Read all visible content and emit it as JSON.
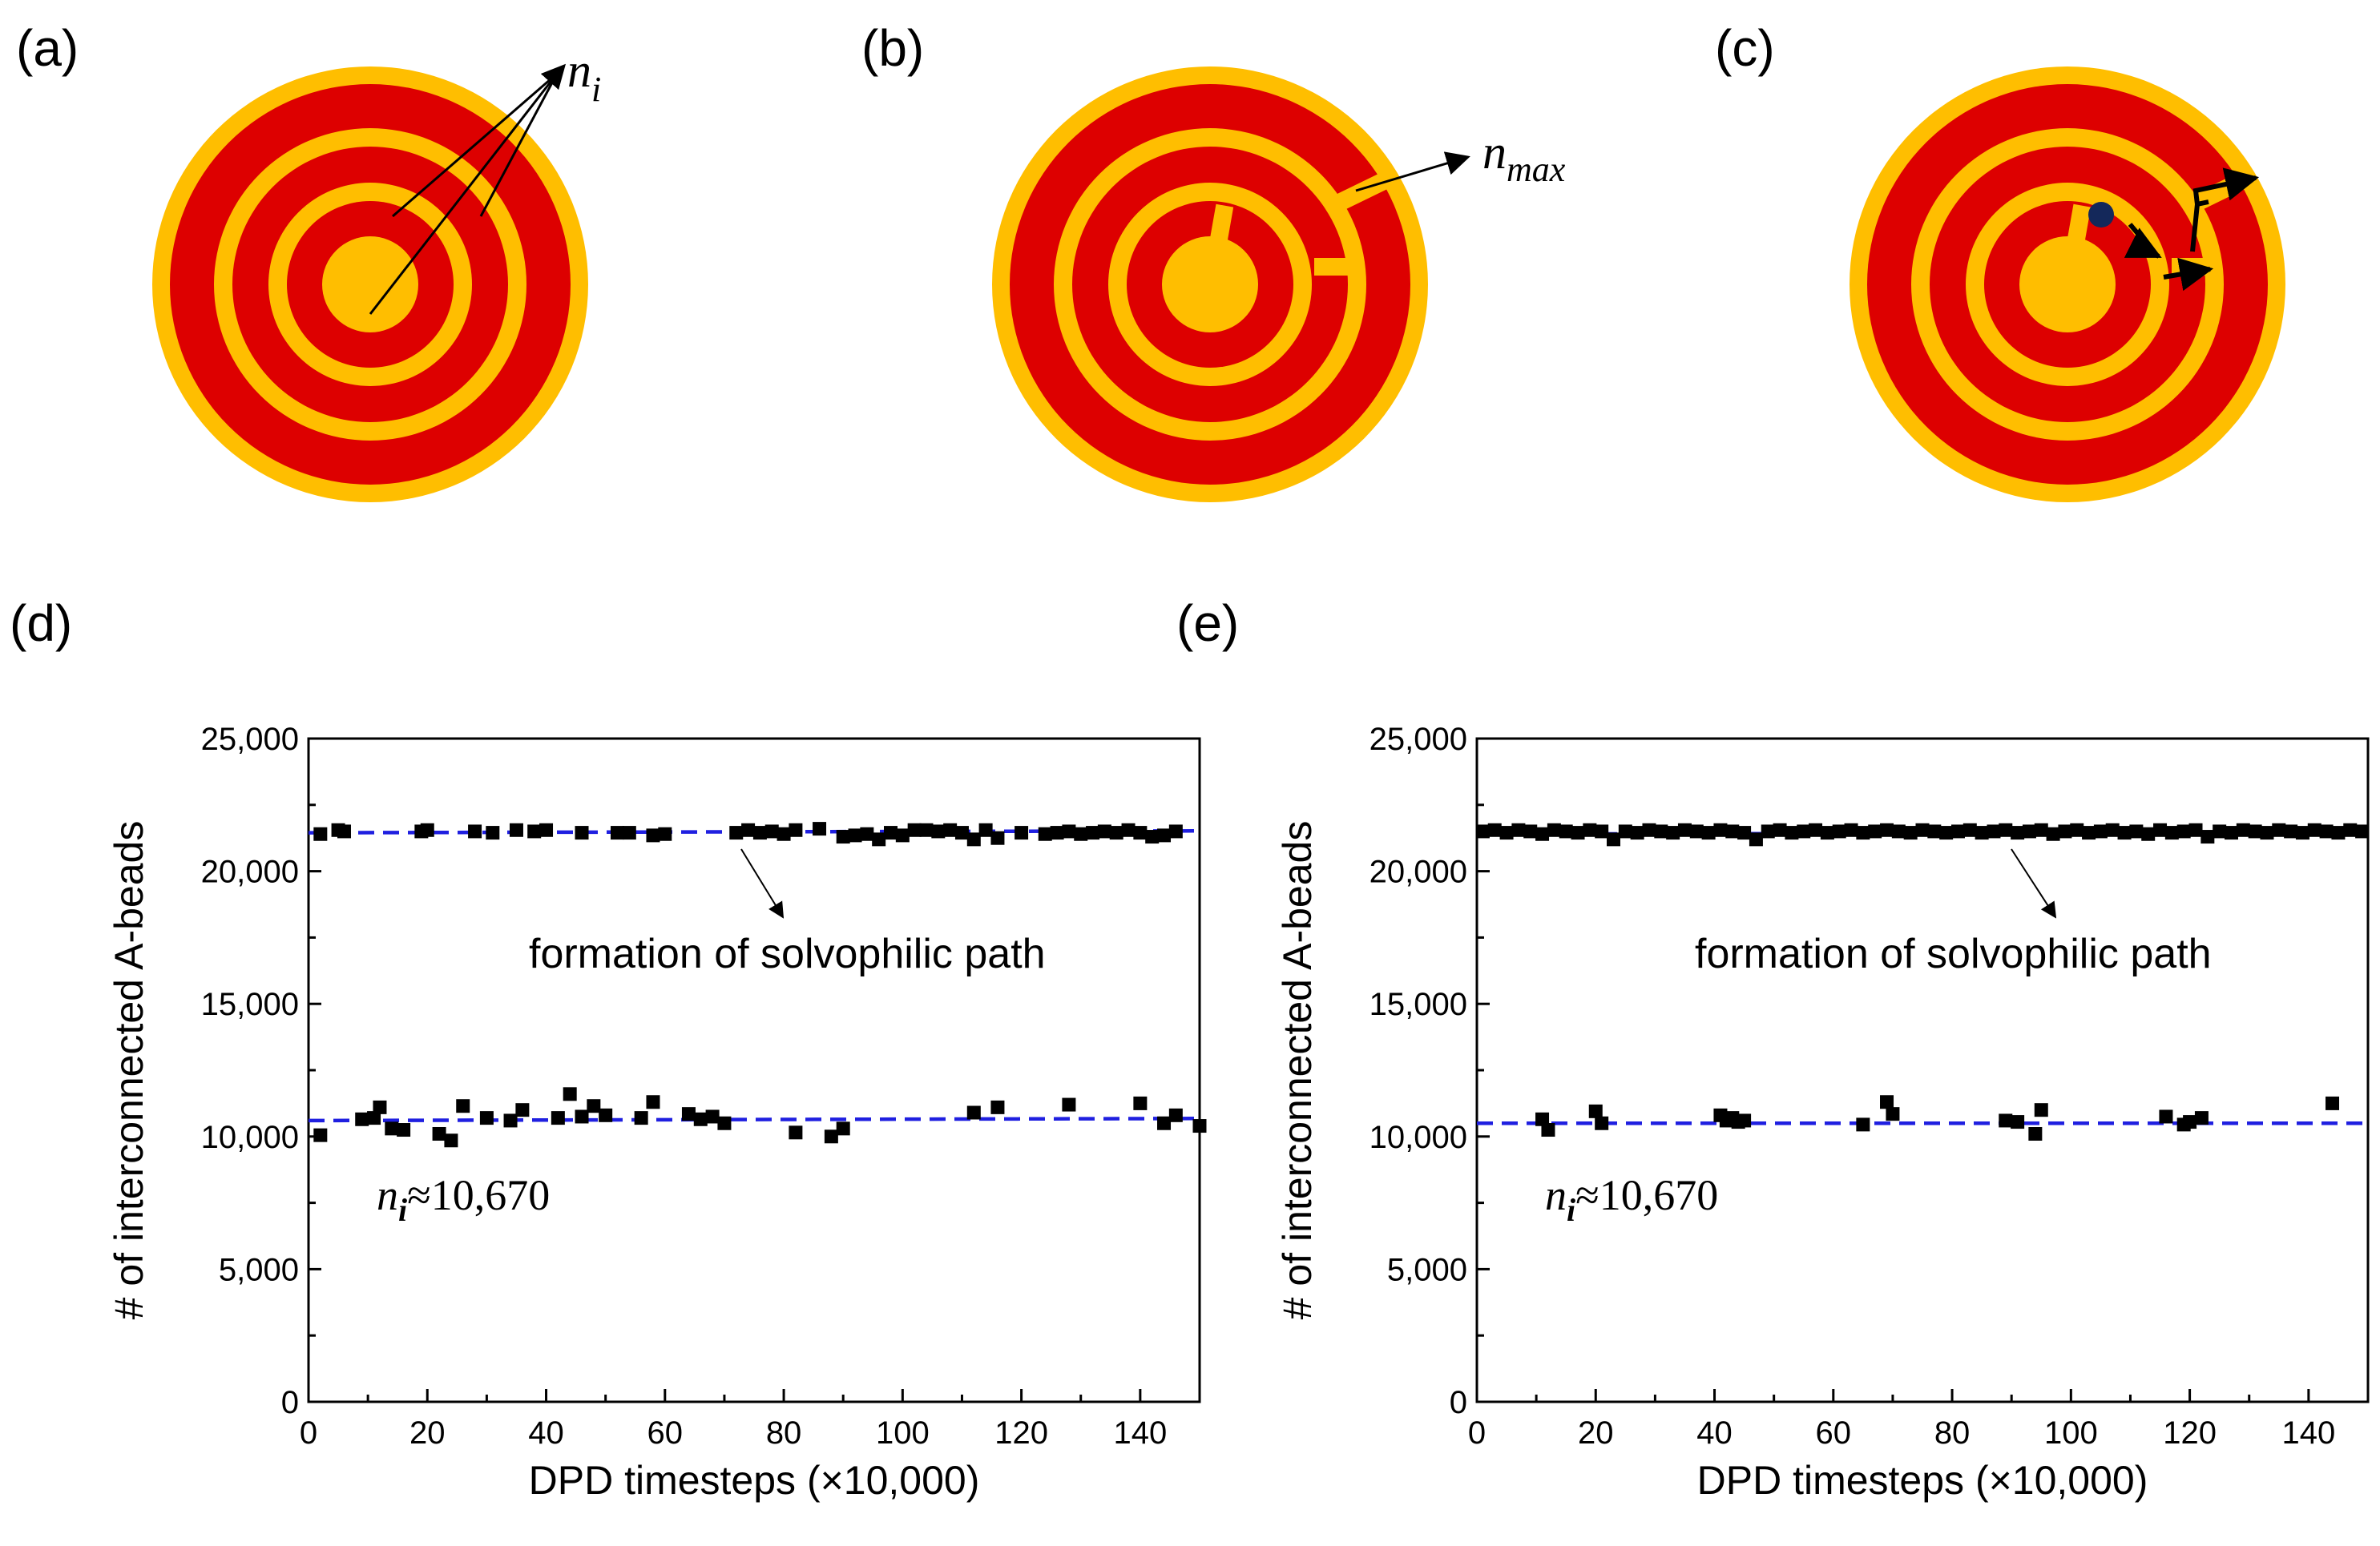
{
  "colors": {
    "ring_red": "#DD0000",
    "ring_yellow": "#FFBE00",
    "fit_line": "#1F1FE0",
    "bead": "#14285A",
    "marker": "#000000"
  },
  "panels": {
    "a": {
      "label": "(a)",
      "marker_base": "n",
      "marker_sub": "i"
    },
    "b": {
      "label": "(b)",
      "marker_base": "n",
      "marker_sub": "max"
    },
    "c": {
      "label": "(c)"
    },
    "d": {
      "label": "(d)"
    },
    "e": {
      "label": "(e)"
    }
  },
  "chart_data": [
    {
      "type": "scatter",
      "panel": "d",
      "title": "",
      "xlabel": "DPD timesteps (×10,000)",
      "ylabel": "# of interconnected A-beads",
      "xlim": [
        0,
        150
      ],
      "ylim": [
        0,
        25000
      ],
      "xticks": [
        0,
        20,
        40,
        60,
        80,
        100,
        120,
        140
      ],
      "xtick_labels": [
        "0",
        "20",
        "40",
        "60",
        "80",
        "100",
        "120",
        "140"
      ],
      "yticks": [
        0,
        5000,
        10000,
        15000,
        20000,
        25000
      ],
      "ytick_labels": [
        "0",
        "5,000",
        "10,000",
        "15,000",
        "20,000",
        "25,000"
      ],
      "annotation": "formation of solvophilic path",
      "ni_label": {
        "base": "n",
        "sub": "i",
        "text": "≈10,670"
      },
      "fit_lines": [
        {
          "name": "upper level",
          "x": [
            0,
            150
          ],
          "y": [
            21450,
            21520
          ]
        },
        {
          "name": "lower level",
          "x": [
            0,
            150
          ],
          "y": [
            10600,
            10680
          ]
        }
      ],
      "series": [
        {
          "name": "upper",
          "x": [
            2,
            5,
            6,
            19,
            20,
            28,
            31,
            35,
            38,
            40,
            46,
            52,
            54,
            58,
            60,
            72,
            74,
            76,
            78,
            80,
            82,
            86,
            90,
            92,
            94,
            96,
            98,
            100,
            102,
            104,
            106,
            108,
            110,
            112,
            114,
            116,
            120,
            124,
            126,
            128,
            130,
            132,
            134,
            136,
            138,
            140,
            142,
            144,
            146
          ],
          "y": [
            21400,
            21550,
            21500,
            21500,
            21550,
            21500,
            21450,
            21550,
            21500,
            21550,
            21450,
            21450,
            21450,
            21350,
            21400,
            21450,
            21550,
            21450,
            21500,
            21400,
            21550,
            21600,
            21300,
            21350,
            21400,
            21200,
            21450,
            21350,
            21550,
            21550,
            21500,
            21550,
            21450,
            21200,
            21550,
            21250,
            21450,
            21400,
            21450,
            21500,
            21400,
            21450,
            21500,
            21450,
            21550,
            21450,
            21300,
            21350,
            21500
          ]
        },
        {
          "name": "lower",
          "x": [
            2,
            9,
            11,
            12,
            14,
            16,
            22,
            24,
            26,
            30,
            34,
            36,
            42,
            44,
            46,
            48,
            50,
            56,
            58,
            64,
            66,
            68,
            70,
            82,
            88,
            90,
            112,
            116,
            128,
            140,
            144,
            146,
            150
          ],
          "y": [
            10050,
            10650,
            10700,
            11100,
            10300,
            10250,
            10100,
            9850,
            11150,
            10700,
            10600,
            11000,
            10700,
            11600,
            10750,
            11150,
            10800,
            10700,
            11300,
            10850,
            10650,
            10750,
            10500,
            10150,
            10000,
            10300,
            10900,
            11100,
            11200,
            11250,
            10500,
            10800,
            10400
          ]
        }
      ]
    },
    {
      "type": "scatter",
      "panel": "e",
      "title": "",
      "xlabel": "DPD timesteps (×10,000)",
      "ylabel": "# of interconnected A-beads",
      "xlim": [
        0,
        150
      ],
      "ylim": [
        0,
        25000
      ],
      "xticks": [
        0,
        20,
        40,
        60,
        80,
        100,
        120,
        140
      ],
      "xtick_labels": [
        "0",
        "20",
        "40",
        "60",
        "80",
        "100",
        "120",
        "140"
      ],
      "yticks": [
        0,
        5000,
        10000,
        15000,
        20000,
        25000
      ],
      "ytick_labels": [
        "0",
        "5,000",
        "10,000",
        "15,000",
        "20,000",
        "25,000"
      ],
      "annotation": "formation of solvophilic path",
      "ni_label": {
        "base": "n",
        "sub": "i",
        "text": "≈10,670"
      },
      "fit_lines": [
        {
          "name": "upper level",
          "x": [
            0,
            150
          ],
          "y": [
            21400,
            21450
          ]
        },
        {
          "name": "lower level",
          "x": [
            0,
            150
          ],
          "y": [
            10500,
            10500
          ]
        }
      ],
      "series": [
        {
          "name": "upper",
          "x": [
            1,
            3,
            5,
            7,
            9,
            11,
            13,
            15,
            17,
            19,
            21,
            23,
            25,
            27,
            29,
            31,
            33,
            35,
            37,
            39,
            41,
            43,
            45,
            47,
            49,
            51,
            53,
            55,
            57,
            59,
            61,
            63,
            65,
            67,
            69,
            71,
            73,
            75,
            77,
            79,
            81,
            83,
            85,
            87,
            89,
            91,
            93,
            95,
            97,
            99,
            101,
            103,
            105,
            107,
            109,
            111,
            113,
            115,
            117,
            119,
            121,
            123,
            125,
            127,
            129,
            131,
            133,
            135,
            137,
            139,
            141,
            143,
            145,
            147,
            149
          ],
          "y": [
            21500,
            21550,
            21450,
            21550,
            21500,
            21400,
            21550,
            21500,
            21450,
            21550,
            21500,
            21200,
            21500,
            21450,
            21550,
            21500,
            21450,
            21550,
            21500,
            21450,
            21550,
            21500,
            21450,
            21200,
            21500,
            21550,
            21450,
            21500,
            21550,
            21450,
            21500,
            21550,
            21450,
            21500,
            21550,
            21500,
            21450,
            21550,
            21500,
            21450,
            21500,
            21550,
            21450,
            21500,
            21550,
            21450,
            21500,
            21550,
            21400,
            21500,
            21550,
            21450,
            21500,
            21550,
            21450,
            21500,
            21400,
            21550,
            21450,
            21500,
            21550,
            21300,
            21500,
            21450,
            21550,
            21500,
            21450,
            21550,
            21500,
            21450,
            21550,
            21500,
            21450,
            21550,
            21500
          ]
        },
        {
          "name": "lower",
          "x": [
            11,
            12,
            20,
            21,
            41,
            42,
            43,
            44,
            45,
            65,
            69,
            70,
            89,
            91,
            94,
            95,
            116,
            119,
            120,
            122,
            144
          ],
          "y": [
            10650,
            10250,
            10950,
            10500,
            10800,
            10600,
            10700,
            10550,
            10600,
            10450,
            11300,
            10850,
            10600,
            10550,
            10100,
            11000,
            10750,
            10450,
            10550,
            10700,
            11250
          ]
        }
      ]
    }
  ]
}
